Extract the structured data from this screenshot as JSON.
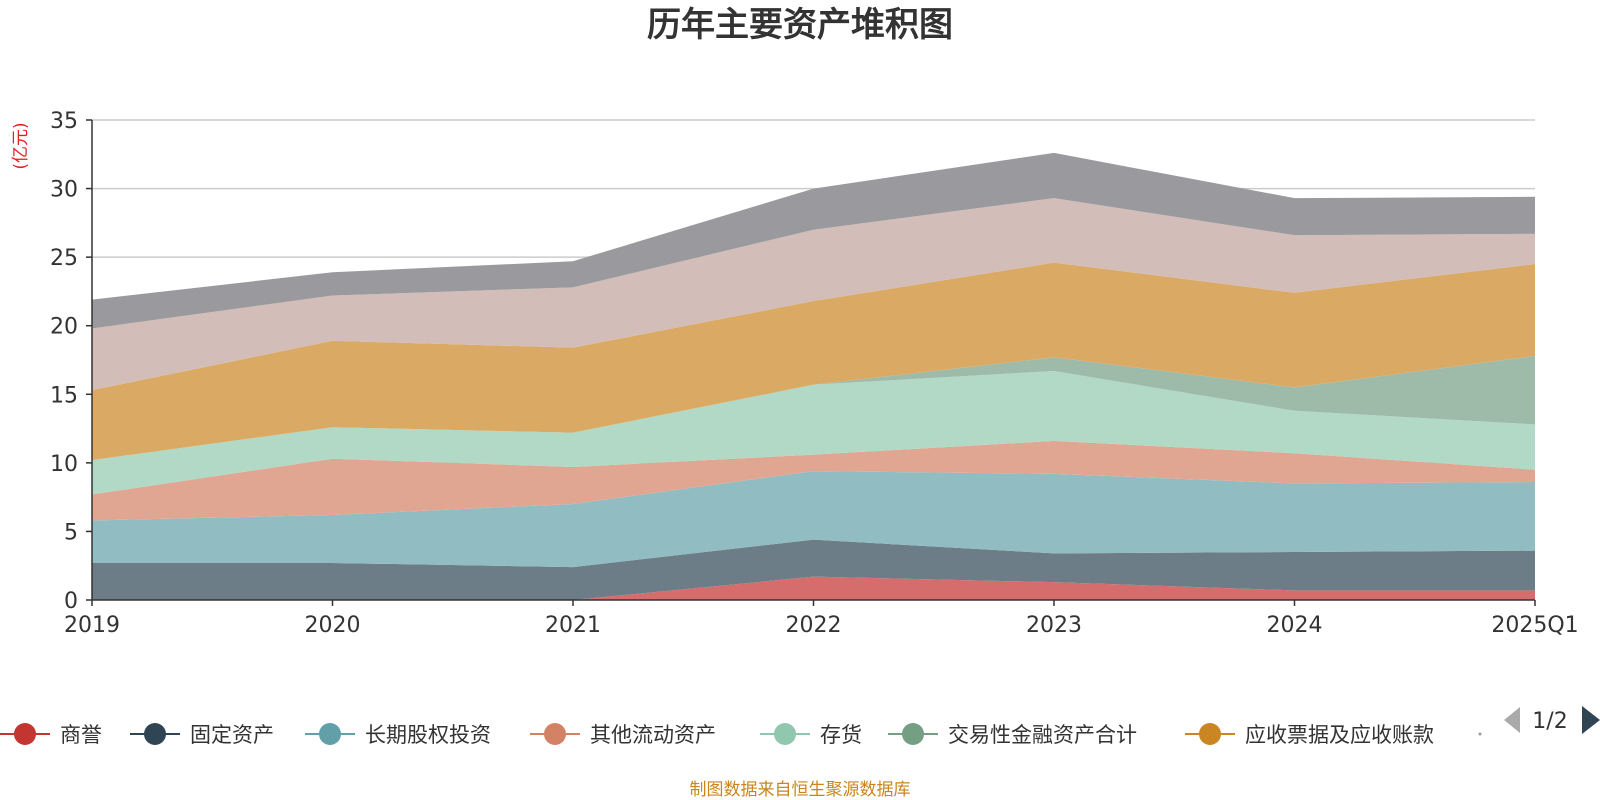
{
  "title": "历年主要资产堆积图",
  "footer": "制图数据来自恒生聚源数据库",
  "legend_page": "1/2",
  "chart_data": {
    "type": "area",
    "stacked": true,
    "title": "历年主要资产堆积图",
    "ylabel": "(亿元)",
    "categories": [
      "2019",
      "2020",
      "2021",
      "2022",
      "2023",
      "2024",
      "2025Q1"
    ],
    "ylim": [
      0,
      35
    ],
    "yticks": [
      0,
      5,
      10,
      15,
      20,
      25,
      30,
      35
    ],
    "grid": true,
    "legend_position": "bottom",
    "series": [
      {
        "name": "商誉",
        "color": "#c23531",
        "fill": "#d46d6b",
        "values": [
          0.0,
          0.0,
          0.0,
          1.7,
          1.3,
          0.7,
          0.7
        ]
      },
      {
        "name": "固定资产",
        "color": "#2f4554",
        "fill": "#6d7d88",
        "values": [
          2.7,
          2.7,
          2.4,
          2.7,
          2.1,
          2.8,
          2.9
        ]
      },
      {
        "name": "长期股权投资",
        "color": "#61a0a8",
        "fill": "#90bcc2",
        "values": [
          3.1,
          3.5,
          4.6,
          5.0,
          5.8,
          5.0,
          5.0
        ]
      },
      {
        "name": "其他流动资产",
        "color": "#d48265",
        "fill": "#e1a692",
        "values": [
          1.9,
          4.1,
          2.7,
          1.2,
          2.4,
          2.2,
          0.9
        ]
      },
      {
        "name": "存货",
        "color": "#91c7ae",
        "fill": "#b1d9c6",
        "values": [
          2.5,
          2.3,
          2.5,
          5.1,
          5.1,
          3.1,
          3.3
        ]
      },
      {
        "name": "交易性金融资产合计",
        "color": "#749f83",
        "fill": "#9dbba8",
        "values": [
          0.0,
          0.0,
          0.0,
          0.0,
          1.0,
          1.7,
          5.0
        ]
      },
      {
        "name": "应收票据及应收账款",
        "color": "#ca8622",
        "fill": "#daaa64",
        "values": [
          5.1,
          6.3,
          6.2,
          6.1,
          6.9,
          6.9,
          6.7
        ]
      },
      {
        "name": "",
        "color": "#bda29a",
        "fill": "#d2bdb8",
        "values": [
          4.5,
          3.3,
          4.4,
          5.2,
          4.7,
          4.2,
          2.2
        ]
      },
      {
        "name": "",
        "color": "#6e7074",
        "fill": "#9a9a9e",
        "values": [
          2.1,
          1.7,
          1.9,
          3.0,
          3.3,
          2.7,
          2.7
        ]
      }
    ]
  }
}
